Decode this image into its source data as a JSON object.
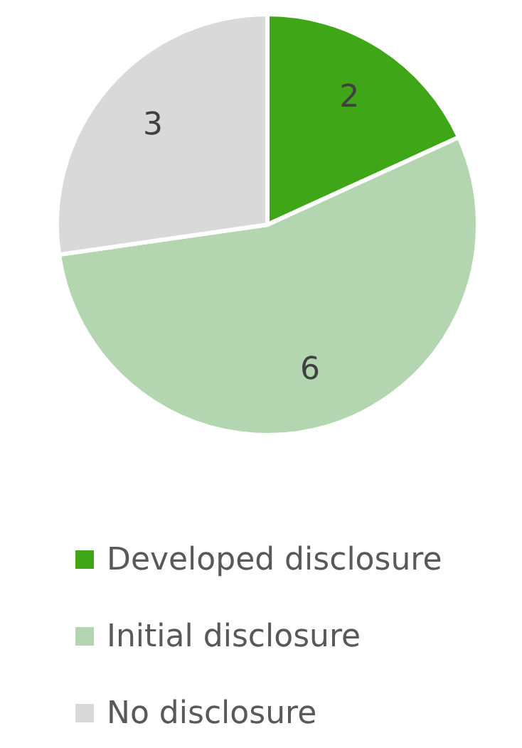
{
  "chart_data": {
    "type": "pie",
    "categories": [
      "Developed disclosure",
      "Initial disclosure",
      "No disclosure"
    ],
    "values": [
      2,
      6,
      3
    ],
    "colors": [
      "#3fa618",
      "#b3d6b0",
      "#d9d9d9"
    ],
    "data_labels": true,
    "legend": "bottom"
  }
}
